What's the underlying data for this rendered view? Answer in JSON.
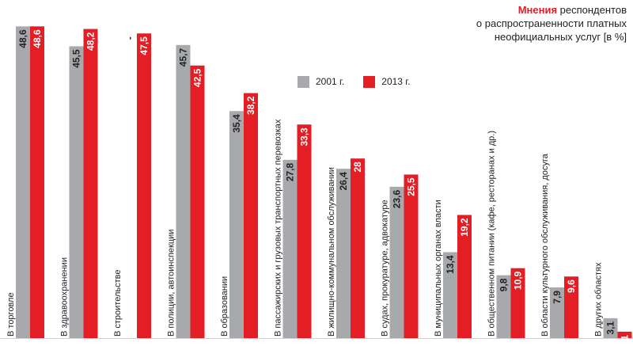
{
  "title": {
    "strong": "Мнения",
    "rest_line1": " респондентов",
    "line2": "о распространенности платных",
    "line3": "неофициальных услуг [в %]"
  },
  "colors": {
    "s2001": "#a7a9ac",
    "s2013": "#e31e24",
    "text": "#222222"
  },
  "legend": [
    {
      "label": "2001 г.",
      "color": "#a7a9ac"
    },
    {
      "label": "2013 г.",
      "color": "#e31e24"
    }
  ],
  "chart_data": {
    "type": "bar",
    "orientation": "vertical",
    "ylim": [
      0,
      50
    ],
    "categories": [
      "В торговле",
      "В здравоохранении",
      "В строительстве",
      "В полиции, автоинспекции",
      "В образовании",
      "В пассажирских и грузовых транспортных перевозках",
      "В жилищно-коммунальном обслуживании",
      "В судах, прокуратуре, адвокатуре",
      "В муниципальных органах власти",
      "В общественном питании (кафе, ресторанах и др.)",
      "В области культурного обслуживания, досуга",
      "В других областях"
    ],
    "series": [
      {
        "name": "2001 г.",
        "color": "#a7a9ac",
        "values": [
          48.6,
          45.5,
          null,
          45.7,
          35.4,
          27.8,
          26.4,
          23.6,
          13.4,
          9.8,
          7.9,
          3.1
        ],
        "labels": [
          "48,6",
          "45,5",
          "-",
          "45,7",
          "35,4",
          "27,8",
          "26,4",
          "23,6",
          "13,4",
          "9,8",
          "7,9",
          "3,1"
        ]
      },
      {
        "name": "2013 г.",
        "color": "#e31e24",
        "values": [
          48.6,
          48.2,
          47.5,
          42.5,
          38.2,
          33.3,
          28,
          25.5,
          19.2,
          10.9,
          9.6,
          1
        ],
        "labels": [
          "48,6",
          "48,2",
          "47,5",
          "42,5",
          "38,2",
          "33,3",
          "28",
          "25,5",
          "19,2",
          "10,9",
          "9,6",
          "1"
        ]
      }
    ]
  }
}
